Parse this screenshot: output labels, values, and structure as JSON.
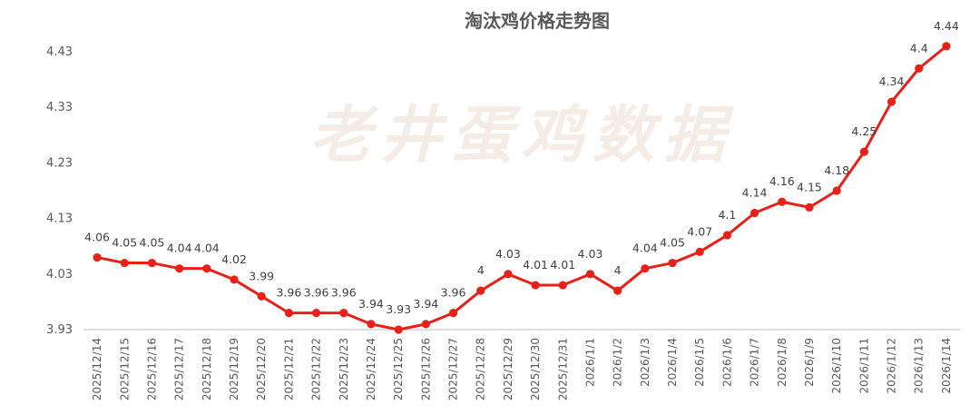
{
  "chart_data": {
    "type": "line",
    "title": "淘汰鸡价格走势图",
    "watermark": "老井蛋鸡数据",
    "xlabel": "",
    "ylabel": "",
    "ylim": [
      3.93,
      4.43
    ],
    "yticks": [
      "3.93",
      "4.03",
      "4.13",
      "4.23",
      "4.33",
      "4.43"
    ],
    "grid": false,
    "legend": "none",
    "line_color": "#e8201a",
    "categories": [
      "2025/12/14",
      "2025/12/15",
      "2025/12/16",
      "2025/12/17",
      "2025/12/18",
      "2025/12/19",
      "2025/12/20",
      "2025/12/21",
      "2025/12/22",
      "2025/12/23",
      "2025/12/24",
      "2025/12/25",
      "2025/12/26",
      "2025/12/27",
      "2025/12/28",
      "2025/12/29",
      "2025/12/30",
      "2025/12/31",
      "2026/1/1",
      "2026/1/2",
      "2026/1/3",
      "2026/1/4",
      "2026/1/5",
      "2026/1/6",
      "2026/1/7",
      "2026/1/8",
      "2026/1/9",
      "2026/1/10",
      "2026/1/11",
      "2026/1/12",
      "2026/1/13",
      "2026/1/14"
    ],
    "values": [
      4.06,
      4.05,
      4.05,
      4.04,
      4.04,
      4.02,
      3.99,
      3.96,
      3.96,
      3.96,
      3.94,
      3.93,
      3.94,
      3.96,
      4,
      4.03,
      4.01,
      4.01,
      4.03,
      4,
      4.04,
      4.05,
      4.07,
      4.1,
      4.14,
      4.16,
      4.15,
      4.18,
      4.25,
      4.34,
      4.4,
      4.44
    ],
    "data_labels": [
      "4.06",
      "4.05",
      "4.05",
      "4.04",
      "4.04",
      "4.02",
      "3.99",
      "3.96",
      "3.96",
      "3.96",
      "3.94",
      "3.93",
      "3.94",
      "3.96",
      "4",
      "4.03",
      "4.01",
      "4.01",
      "4.03",
      "4",
      "4.04",
      "4.05",
      "4.07",
      "4.1",
      "4.14",
      "4.16",
      "4.15",
      "4.18",
      "4.25",
      "4.34",
      "4.4",
      "4.44"
    ]
  }
}
